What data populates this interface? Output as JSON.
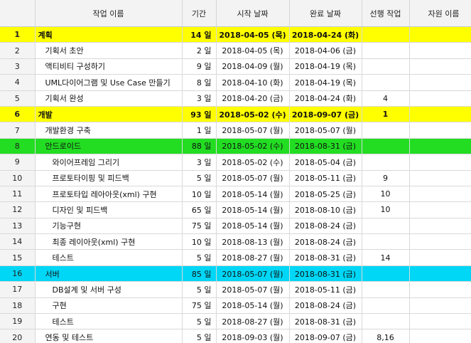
{
  "header": {
    "id": "",
    "name": "작업 이름",
    "duration": "기간",
    "start": "시작 날짜",
    "finish": "완료 날짜",
    "predecessors": "선행 작업",
    "resources": "자원 이름"
  },
  "row_colors": {
    "yellow": "#ffff00",
    "green": "#22dd22",
    "cyan": "#00d6f5"
  },
  "rows": [
    {
      "id": "1",
      "name": "계획",
      "duration": "14 일",
      "start": "2018-04-05 (목)",
      "finish": "2018-04-24 (화)",
      "pred": "",
      "res": "",
      "level": 0,
      "highlight": "yellow",
      "bold": true
    },
    {
      "id": "2",
      "name": "기획서 초안",
      "duration": "2 일",
      "start": "2018-04-05 (목)",
      "finish": "2018-04-06 (금)",
      "pred": "",
      "res": "",
      "level": 1,
      "highlight": "",
      "bold": false
    },
    {
      "id": "3",
      "name": "액티비티 구성하기",
      "duration": "9 일",
      "start": "2018-04-09 (월)",
      "finish": "2018-04-19 (목)",
      "pred": "",
      "res": "",
      "level": 1,
      "highlight": "",
      "bold": false
    },
    {
      "id": "4",
      "name": "UML다이어그램 및 Use Case 만들기",
      "duration": "8 일",
      "start": "2018-04-10 (화)",
      "finish": "2018-04-19 (목)",
      "pred": "",
      "res": "",
      "level": 1,
      "highlight": "",
      "bold": false
    },
    {
      "id": "5",
      "name": "기획서 완성",
      "duration": "3 일",
      "start": "2018-04-20 (금)",
      "finish": "2018-04-24 (화)",
      "pred": "4",
      "res": "",
      "level": 1,
      "highlight": "",
      "bold": false
    },
    {
      "id": "6",
      "name": "개발",
      "duration": "93 일",
      "start": "2018-05-02 (수)",
      "finish": "2018-09-07 (금)",
      "pred": "1",
      "res": "",
      "level": 0,
      "highlight": "yellow",
      "bold": true
    },
    {
      "id": "7",
      "name": "개발환경 구축",
      "duration": "1 일",
      "start": "2018-05-07 (월)",
      "finish": "2018-05-07 (월)",
      "pred": "",
      "res": "",
      "level": 1,
      "highlight": "",
      "bold": false
    },
    {
      "id": "8",
      "name": "안드로이드",
      "duration": "88 일",
      "start": "2018-05-02 (수)",
      "finish": "2018-08-31 (금)",
      "pred": "",
      "res": "",
      "level": 1,
      "highlight": "green",
      "bold": false
    },
    {
      "id": "9",
      "name": "와이어프레임 그리기",
      "duration": "3 일",
      "start": "2018-05-02 (수)",
      "finish": "2018-05-04 (금)",
      "pred": "",
      "res": "",
      "level": 2,
      "highlight": "",
      "bold": false
    },
    {
      "id": "10",
      "name": "프로토타이핑 및 피드백",
      "duration": "5 일",
      "start": "2018-05-07 (월)",
      "finish": "2018-05-11 (금)",
      "pred": "9",
      "res": "",
      "level": 2,
      "highlight": "",
      "bold": false
    },
    {
      "id": "11",
      "name": "프로토타입 레아아웃(xml) 구현",
      "duration": "10 일",
      "start": "2018-05-14 (월)",
      "finish": "2018-05-25 (금)",
      "pred": "10",
      "res": "",
      "level": 2,
      "highlight": "",
      "bold": false
    },
    {
      "id": "12",
      "name": "디자인 및 피드백",
      "duration": "65 일",
      "start": "2018-05-14 (월)",
      "finish": "2018-08-10 (금)",
      "pred": "10",
      "res": "",
      "level": 2,
      "highlight": "",
      "bold": false
    },
    {
      "id": "13",
      "name": "기능구현",
      "duration": "75 일",
      "start": "2018-05-14 (월)",
      "finish": "2018-08-24 (금)",
      "pred": "",
      "res": "",
      "level": 2,
      "highlight": "",
      "bold": false
    },
    {
      "id": "14",
      "name": "최종 레이아웃(xml) 구현",
      "duration": "10 일",
      "start": "2018-08-13 (월)",
      "finish": "2018-08-24 (금)",
      "pred": "",
      "res": "",
      "level": 2,
      "highlight": "",
      "bold": false
    },
    {
      "id": "15",
      "name": "테스트",
      "duration": "5 일",
      "start": "2018-08-27 (월)",
      "finish": "2018-08-31 (금)",
      "pred": "14",
      "res": "",
      "level": 2,
      "highlight": "",
      "bold": false
    },
    {
      "id": "16",
      "name": "서버",
      "duration": "85 일",
      "start": "2018-05-07 (월)",
      "finish": "2018-08-31 (금)",
      "pred": "",
      "res": "",
      "level": 1,
      "highlight": "cyan",
      "bold": false
    },
    {
      "id": "17",
      "name": "DB설계 및 서버 구성",
      "duration": "5 일",
      "start": "2018-05-07 (월)",
      "finish": "2018-05-11 (금)",
      "pred": "",
      "res": "",
      "level": 2,
      "highlight": "",
      "bold": false
    },
    {
      "id": "18",
      "name": "구현",
      "duration": "75 일",
      "start": "2018-05-14 (월)",
      "finish": "2018-08-24 (금)",
      "pred": "",
      "res": "",
      "level": 2,
      "highlight": "",
      "bold": false
    },
    {
      "id": "19",
      "name": "테스트",
      "duration": "5 일",
      "start": "2018-08-27 (월)",
      "finish": "2018-08-31 (금)",
      "pred": "",
      "res": "",
      "level": 2,
      "highlight": "",
      "bold": false
    },
    {
      "id": "20",
      "name": "연동 및 테스트",
      "duration": "5 일",
      "start": "2018-09-03 (월)",
      "finish": "2018-09-07 (금)",
      "pred": "8,16",
      "res": "",
      "level": 1,
      "highlight": "",
      "bold": false
    }
  ]
}
